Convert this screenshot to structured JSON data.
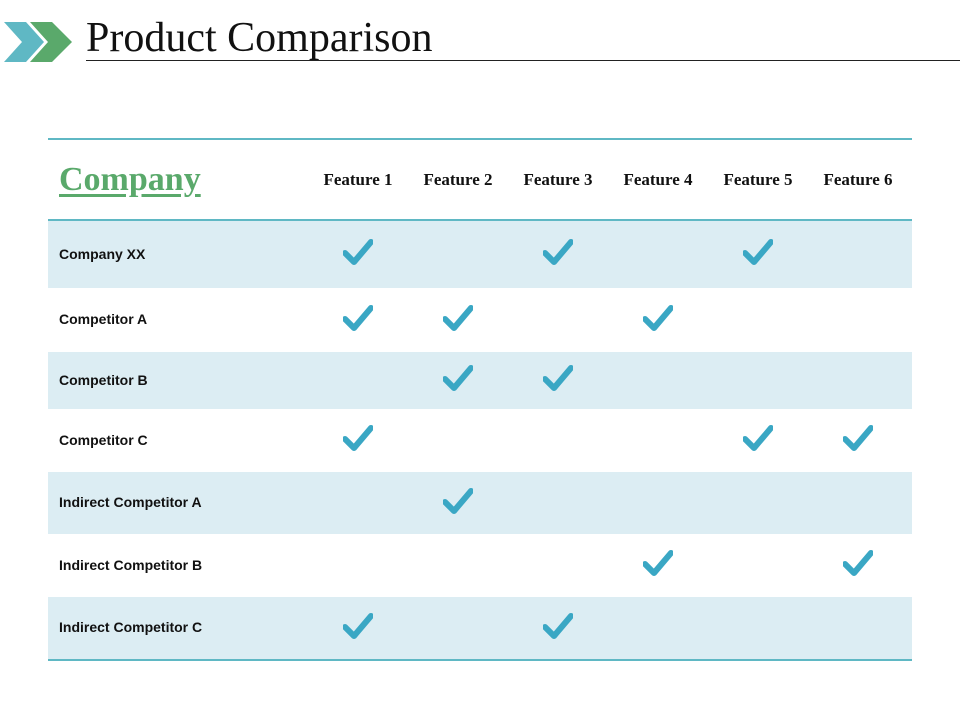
{
  "title": "Product Comparison",
  "colors": {
    "accent": "#5fb8c4",
    "check": "#3aa7c4",
    "shade": "#dcedf3",
    "company": "#5aa96b",
    "logo_light": "#5fb8c4",
    "logo_dark": "#5aa96b"
  },
  "table": {
    "company_header": "Company",
    "features": [
      "Feature 1",
      "Feature 2",
      "Feature 3",
      "Feature 4",
      "Feature 5",
      "Feature 6"
    ],
    "rows": [
      {
        "label": "Company XX",
        "checks": [
          true,
          false,
          true,
          false,
          true,
          false
        ]
      },
      {
        "label": "Competitor A",
        "checks": [
          true,
          true,
          false,
          true,
          false,
          false
        ]
      },
      {
        "label": "Competitor B",
        "checks": [
          false,
          true,
          true,
          false,
          false,
          false
        ]
      },
      {
        "label": "Competitor C",
        "checks": [
          true,
          false,
          false,
          false,
          true,
          true
        ]
      },
      {
        "label": "Indirect Competitor A",
        "checks": [
          false,
          true,
          false,
          false,
          false,
          false
        ]
      },
      {
        "label": "Indirect Competitor B",
        "checks": [
          false,
          false,
          false,
          true,
          false,
          true
        ]
      },
      {
        "label": "Indirect Competitor C",
        "checks": [
          true,
          false,
          true,
          false,
          false,
          false
        ]
      }
    ]
  }
}
